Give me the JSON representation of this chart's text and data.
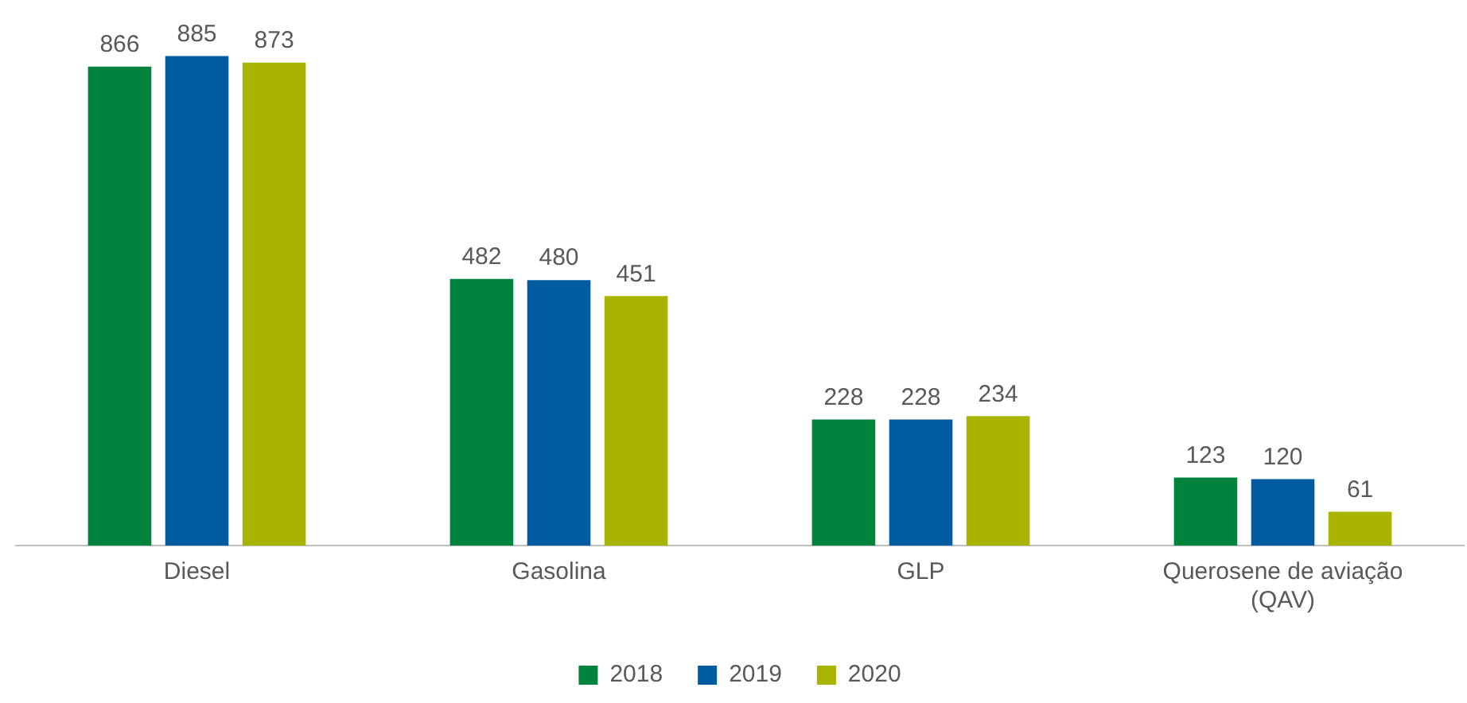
{
  "chart_data": {
    "type": "bar",
    "categories": [
      "Diesel",
      "Gasolina",
      "GLP",
      "Querosene de aviação (QAV)"
    ],
    "series": [
      {
        "name": "2018",
        "color": "#00843d",
        "values": [
          866,
          482,
          228,
          123
        ]
      },
      {
        "name": "2019",
        "color": "#005ba0",
        "values": [
          885,
          480,
          228,
          120
        ]
      },
      {
        "name": "2020",
        "color": "#a8b400",
        "values": [
          873,
          451,
          234,
          61
        ]
      }
    ],
    "data_labels": true,
    "legend": "bottom",
    "grid": false
  }
}
